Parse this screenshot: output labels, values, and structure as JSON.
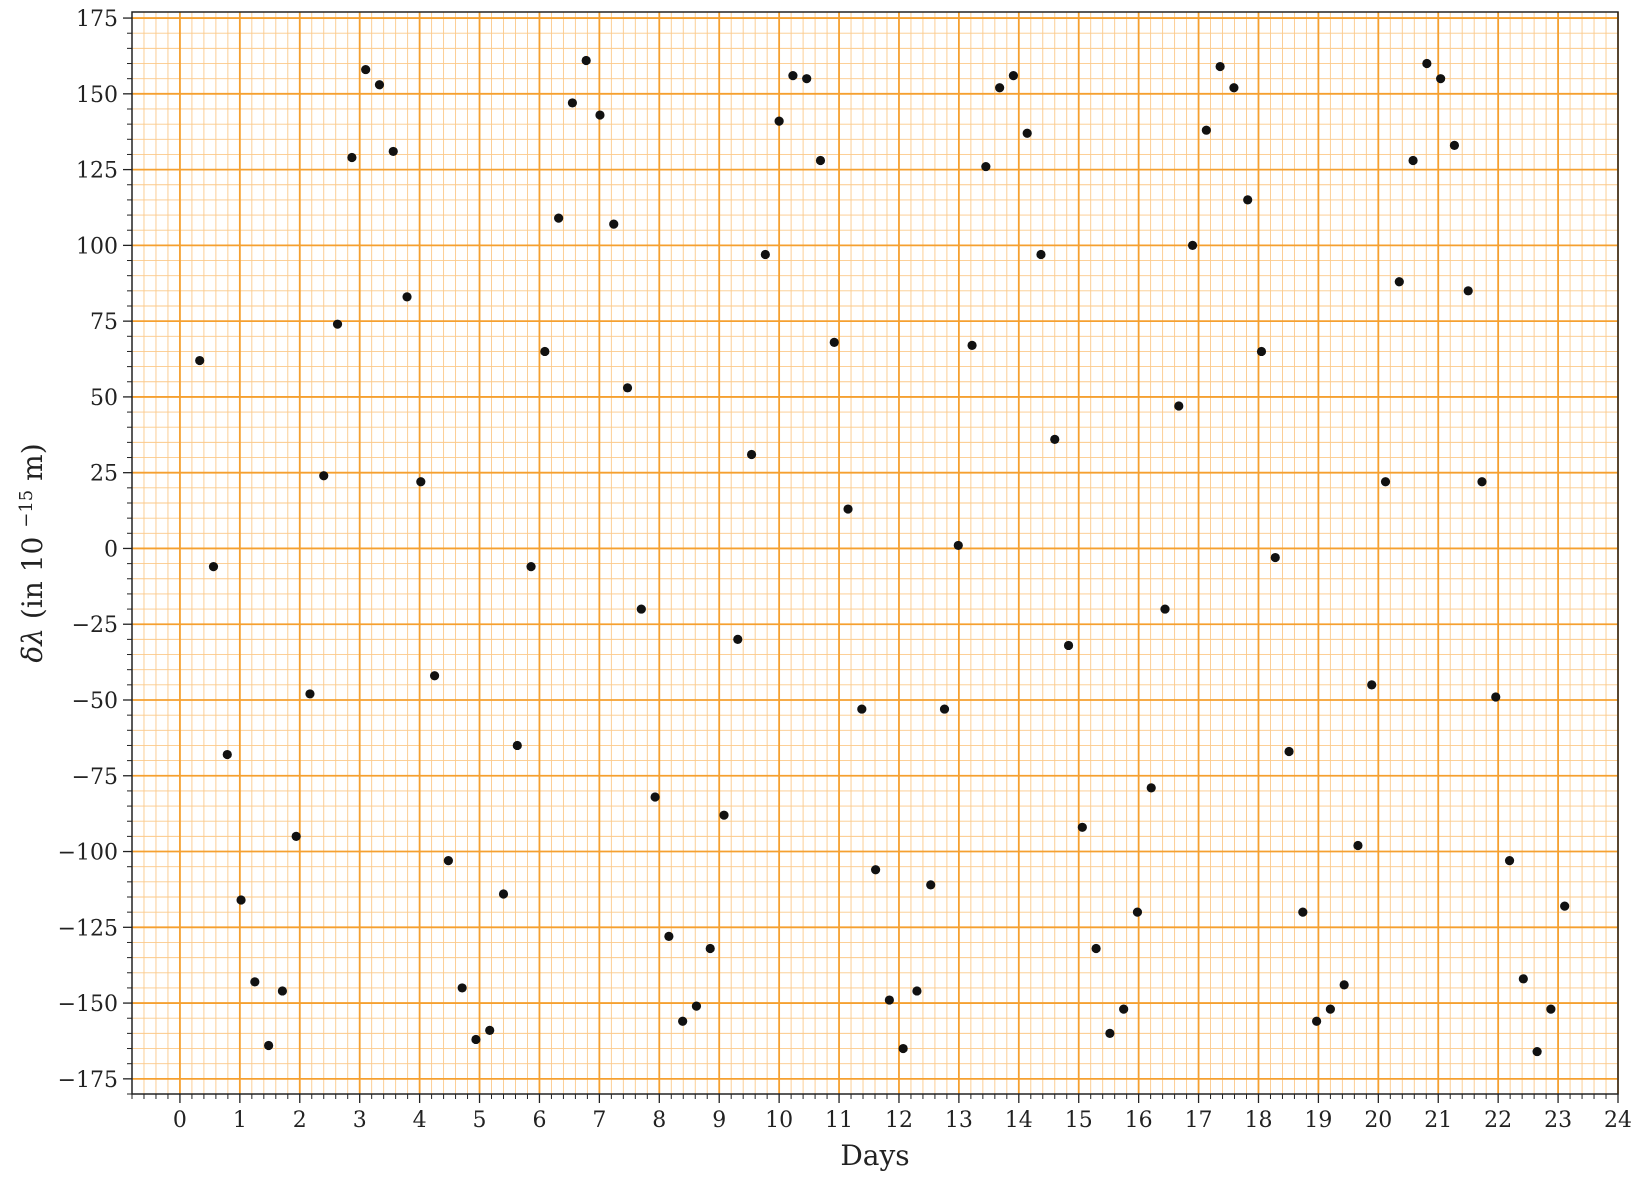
{
  "chart_data": {
    "type": "scatter",
    "xlabel": "Days",
    "ylabel_symbol": "δλ",
    "ylabel_text": "(in 10",
    "ylabel_exp": "−15",
    "ylabel_unit": " m)",
    "xlim": [
      -0.8,
      24
    ],
    "ylim": [
      -180,
      177
    ],
    "x_ticks": [
      0,
      1,
      2,
      3,
      4,
      5,
      6,
      7,
      8,
      9,
      10,
      11,
      12,
      13,
      14,
      15,
      16,
      17,
      18,
      19,
      20,
      21,
      22,
      23,
      24
    ],
    "y_ticks": [
      -175,
      -150,
      -125,
      -100,
      -75,
      -50,
      -25,
      0,
      25,
      50,
      75,
      100,
      125,
      150,
      175
    ],
    "y_tick_labels": [
      "−175",
      "−150",
      "−125",
      "−100",
      "−75",
      "−50",
      "−25",
      "0",
      "25",
      "50",
      "75",
      "100",
      "125",
      "150",
      "175"
    ],
    "grid": true,
    "colors": {
      "grid_major": "#f5a030",
      "grid_minor": "#fbc98a",
      "point": "#111111",
      "background": "#ffffff"
    },
    "points": [
      [
        0.33,
        62
      ],
      [
        0.56,
        -6
      ],
      [
        0.79,
        -68
      ],
      [
        1.02,
        -116
      ],
      [
        1.25,
        -143
      ],
      [
        1.48,
        -164
      ],
      [
        1.71,
        -146
      ],
      [
        1.94,
        -95
      ],
      [
        2.17,
        -48
      ],
      [
        2.4,
        24
      ],
      [
        2.63,
        74
      ],
      [
        2.87,
        129
      ],
      [
        3.1,
        158
      ],
      [
        3.33,
        153
      ],
      [
        3.56,
        131
      ],
      [
        3.79,
        83
      ],
      [
        4.02,
        22
      ],
      [
        4.25,
        -42
      ],
      [
        4.48,
        -103
      ],
      [
        4.71,
        -145
      ],
      [
        4.94,
        -162
      ],
      [
        5.17,
        -159
      ],
      [
        5.4,
        -114
      ],
      [
        5.63,
        -65
      ],
      [
        5.86,
        -6
      ],
      [
        6.09,
        65
      ],
      [
        6.32,
        109
      ],
      [
        6.55,
        147
      ],
      [
        6.78,
        161
      ],
      [
        7.01,
        143
      ],
      [
        7.24,
        107
      ],
      [
        7.47,
        53
      ],
      [
        7.7,
        -20
      ],
      [
        7.93,
        -82
      ],
      [
        8.16,
        -128
      ],
      [
        8.39,
        -156
      ],
      [
        8.62,
        -151
      ],
      [
        8.85,
        -132
      ],
      [
        9.08,
        -88
      ],
      [
        9.31,
        -30
      ],
      [
        9.54,
        31
      ],
      [
        9.77,
        97
      ],
      [
        10.0,
        141
      ],
      [
        10.23,
        156
      ],
      [
        10.46,
        155
      ],
      [
        10.69,
        128
      ],
      [
        10.92,
        68
      ],
      [
        11.15,
        13
      ],
      [
        11.38,
        -53
      ],
      [
        11.61,
        -106
      ],
      [
        11.84,
        -149
      ],
      [
        12.07,
        -165
      ],
      [
        12.3,
        -146
      ],
      [
        12.53,
        -111
      ],
      [
        12.76,
        -53
      ],
      [
        12.99,
        1
      ],
      [
        13.22,
        67
      ],
      [
        13.45,
        126
      ],
      [
        13.68,
        152
      ],
      [
        13.91,
        156
      ],
      [
        14.14,
        137
      ],
      [
        14.37,
        97
      ],
      [
        14.6,
        36
      ],
      [
        14.83,
        -32
      ],
      [
        15.06,
        -92
      ],
      [
        15.29,
        -132
      ],
      [
        15.52,
        -160
      ],
      [
        15.75,
        -152
      ],
      [
        15.98,
        -120
      ],
      [
        16.21,
        -79
      ],
      [
        16.44,
        -20
      ],
      [
        16.67,
        47
      ],
      [
        16.9,
        100
      ],
      [
        17.13,
        138
      ],
      [
        17.36,
        159
      ],
      [
        17.59,
        152
      ],
      [
        17.82,
        115
      ],
      [
        18.05,
        65
      ],
      [
        18.28,
        -3
      ],
      [
        18.51,
        -67
      ],
      [
        18.74,
        -120
      ],
      [
        18.97,
        -156
      ],
      [
        19.2,
        -152
      ],
      [
        19.43,
        -144
      ],
      [
        19.66,
        -98
      ],
      [
        19.89,
        -45
      ],
      [
        20.12,
        22
      ],
      [
        20.35,
        88
      ],
      [
        20.58,
        128
      ],
      [
        20.81,
        160
      ],
      [
        21.04,
        155
      ],
      [
        21.27,
        133
      ],
      [
        21.5,
        85
      ],
      [
        21.73,
        22
      ],
      [
        21.96,
        -49
      ],
      [
        22.19,
        -103
      ],
      [
        22.42,
        -142
      ],
      [
        22.65,
        -166
      ],
      [
        22.88,
        -152
      ],
      [
        23.11,
        -118
      ]
    ]
  }
}
